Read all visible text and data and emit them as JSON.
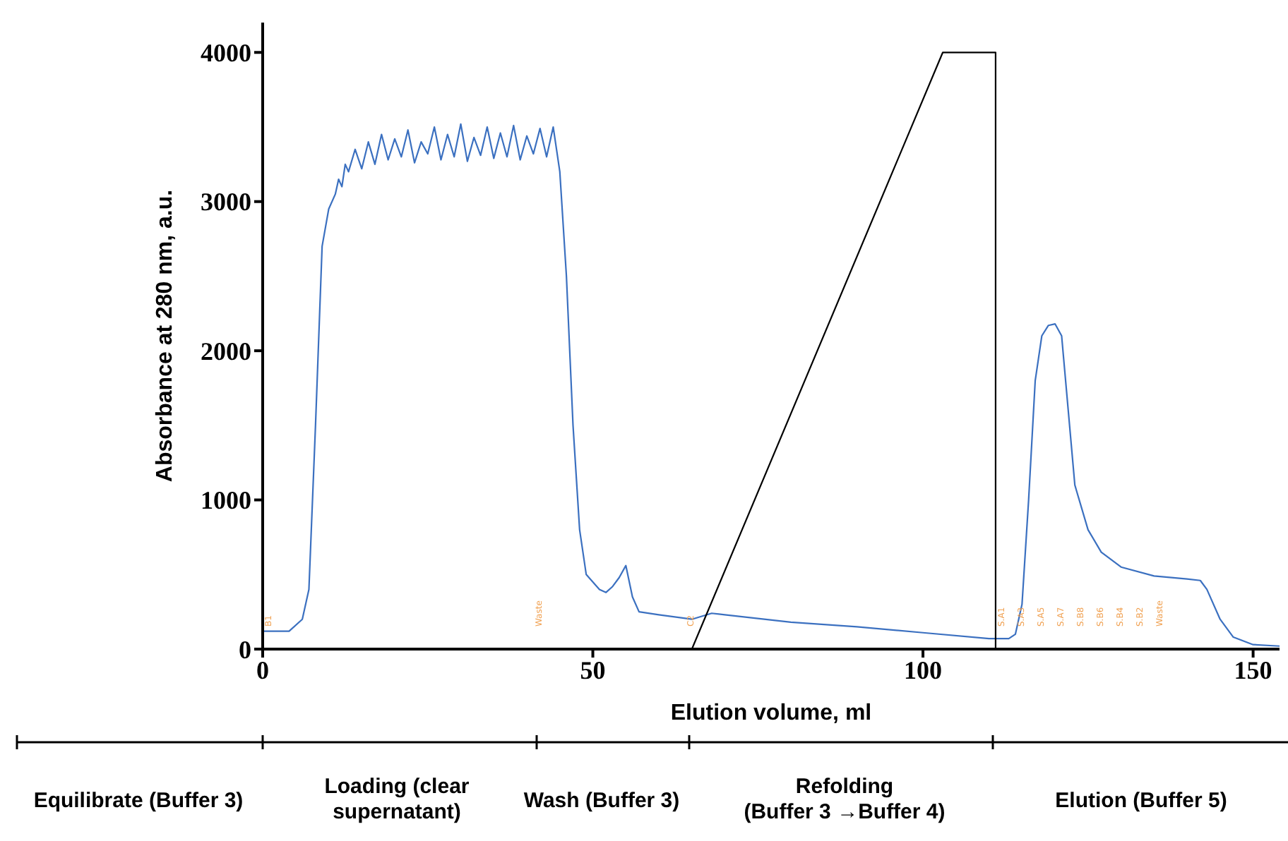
{
  "chart_data": {
    "type": "line",
    "xlabel": "Elution volume, ml",
    "ylabel": "Absorbance at 280 nm, a.u.",
    "xlim": [
      0,
      154
    ],
    "ylim": [
      0,
      4200
    ],
    "xticks": [
      0,
      50,
      100,
      150
    ],
    "yticks": [
      0,
      1000,
      2000,
      3000,
      4000
    ],
    "grid": false,
    "legend": false,
    "marker": "none",
    "line_style": "solid",
    "series": [
      {
        "color": "#3b70c0",
        "x": [
          0,
          4,
          6,
          7,
          8,
          9,
          10,
          11,
          11.5,
          12,
          12.5,
          13,
          14,
          15,
          16,
          17,
          18,
          19,
          20,
          21,
          22,
          23,
          24,
          25,
          26,
          27,
          28,
          29,
          30,
          31,
          32,
          33,
          34,
          35,
          36,
          37,
          38,
          39,
          40,
          41,
          42,
          43,
          44,
          44.5,
          45,
          46,
          47,
          48,
          49,
          51,
          52,
          53,
          54,
          55,
          56,
          57,
          60,
          65,
          68,
          70,
          80,
          90,
          100,
          110,
          113,
          114,
          115,
          116,
          117,
          118,
          119,
          120,
          121,
          122,
          123,
          125,
          127,
          130,
          135,
          140,
          142,
          143,
          145,
          147,
          150,
          154
        ],
        "values": [
          120,
          120,
          200,
          400,
          1500,
          2700,
          2950,
          3050,
          3150,
          3100,
          3250,
          3200,
          3350,
          3220,
          3400,
          3250,
          3450,
          3280,
          3420,
          3300,
          3480,
          3260,
          3400,
          3320,
          3500,
          3280,
          3450,
          3300,
          3520,
          3270,
          3430,
          3310,
          3500,
          3290,
          3460,
          3300,
          3510,
          3280,
          3440,
          3320,
          3490,
          3300,
          3500,
          3350,
          3200,
          2500,
          1500,
          800,
          500,
          400,
          380,
          420,
          480,
          560,
          350,
          250,
          230,
          200,
          240,
          230,
          180,
          150,
          110,
          70,
          70,
          100,
          300,
          1000,
          1800,
          2100,
          2170,
          2180,
          2100,
          1600,
          1100,
          800,
          650,
          550,
          490,
          470,
          460,
          400,
          200,
          80,
          30,
          20
        ]
      },
      {
        "color": "#000000",
        "x": [
          65,
          103,
          111,
          111
        ],
        "values": [
          0,
          4000,
          4000,
          0
        ]
      }
    ],
    "annotations": [
      "B1",
      "Waste",
      "C2",
      "S.A1",
      "S.A3",
      "S.A5",
      "S.A7",
      "S.B8",
      "S.B6",
      "S.B4",
      "S.B2",
      "Waste",
      "Equilibrate (Buffer 3)",
      "Loading (clear supernatant)",
      "Wash (Buffer 3)",
      "Refolding (Buffer 3 →Buffer 4)",
      "Elution (Buffer 5)"
    ]
  }
}
